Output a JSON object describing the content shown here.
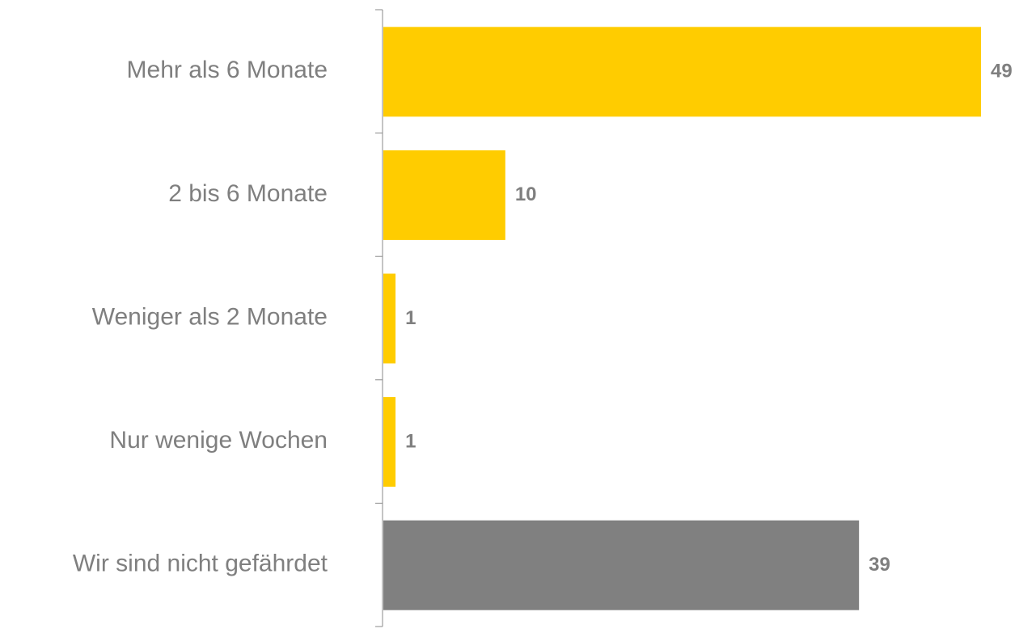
{
  "chart_data": {
    "type": "hbar",
    "categories": [
      "Mehr als 6 Monate",
      "2 bis 6 Monate",
      "Weniger als 2 Monate",
      "Nur wenige Wochen",
      "Wir sind nicht gefährdet"
    ],
    "values": [
      49,
      10,
      1,
      1,
      39
    ],
    "colors": [
      "#ffcc00",
      "#ffcc00",
      "#ffcc00",
      "#ffcc00",
      "#808080"
    ]
  }
}
